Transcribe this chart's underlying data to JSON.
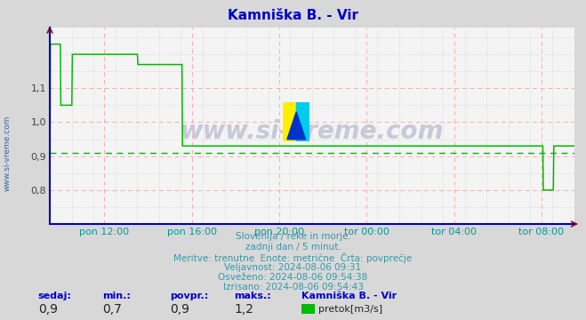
{
  "title": "Kamniška B. - Vir",
  "title_color": "#0000cc",
  "title_fontsize": 11,
  "bg_color": "#d8d8d8",
  "plot_bg_color": "#f4f4f4",
  "line_color": "#00bb00",
  "avg_line_color": "#00bb00",
  "avg_value": 0.91,
  "ymin": 0.7,
  "ymax": 1.28,
  "yticks": [
    0.8,
    0.9,
    1.0,
    1.1
  ],
  "ylabel_color": "#444444",
  "xlabel_color": "#009999",
  "watermark": "www.si-vreme.com",
  "watermark_color": "#c8c8d8",
  "xtick_labels": [
    "pon 12:00",
    "pon 16:00",
    "pon 20:00",
    "tor 00:00",
    "tor 04:00",
    "tor 08:00"
  ],
  "xtick_fracs": [
    0.1042,
    0.2708,
    0.4375,
    0.6042,
    0.7708,
    0.9375
  ],
  "info_lines": [
    "Slovenija / reke in morje.",
    "zadnji dan / 5 minut.",
    "Meritve: trenutne  Enote: metrične  Črta: povprečje",
    "Veljavnost: 2024-08-06 09:31",
    "Osveženo: 2024-08-06 09:54:38",
    "Izrisano: 2024-08-06 09:54:43"
  ],
  "info_color": "#3399aa",
  "bottom_labels": [
    "sedaj:",
    "min.:",
    "povpr.:",
    "maks.:"
  ],
  "bottom_values": [
    "0,9",
    "0,7",
    "0,9",
    "1,2"
  ],
  "bottom_color": "#0000cc",
  "station_name": "Kamniška B. - Vir",
  "legend_label": "pretok[m3/s]",
  "legend_color": "#00bb00",
  "axis_blue": "#0000bb",
  "axis_red": "#cc0000",
  "grid_red": "#ffaaaa",
  "grid_dot": "#cccccc",
  "data_x": [
    0.0,
    0.001,
    0.002,
    0.02,
    0.021,
    0.042,
    0.043,
    0.167,
    0.168,
    0.252,
    0.253,
    0.94,
    0.941,
    0.96,
    0.961,
    0.99,
    1.0
  ],
  "data_y": [
    0.7,
    1.23,
    1.23,
    1.23,
    1.05,
    1.05,
    1.2,
    1.2,
    1.17,
    1.17,
    0.93,
    0.93,
    0.8,
    0.8,
    0.93,
    0.93,
    0.93
  ]
}
